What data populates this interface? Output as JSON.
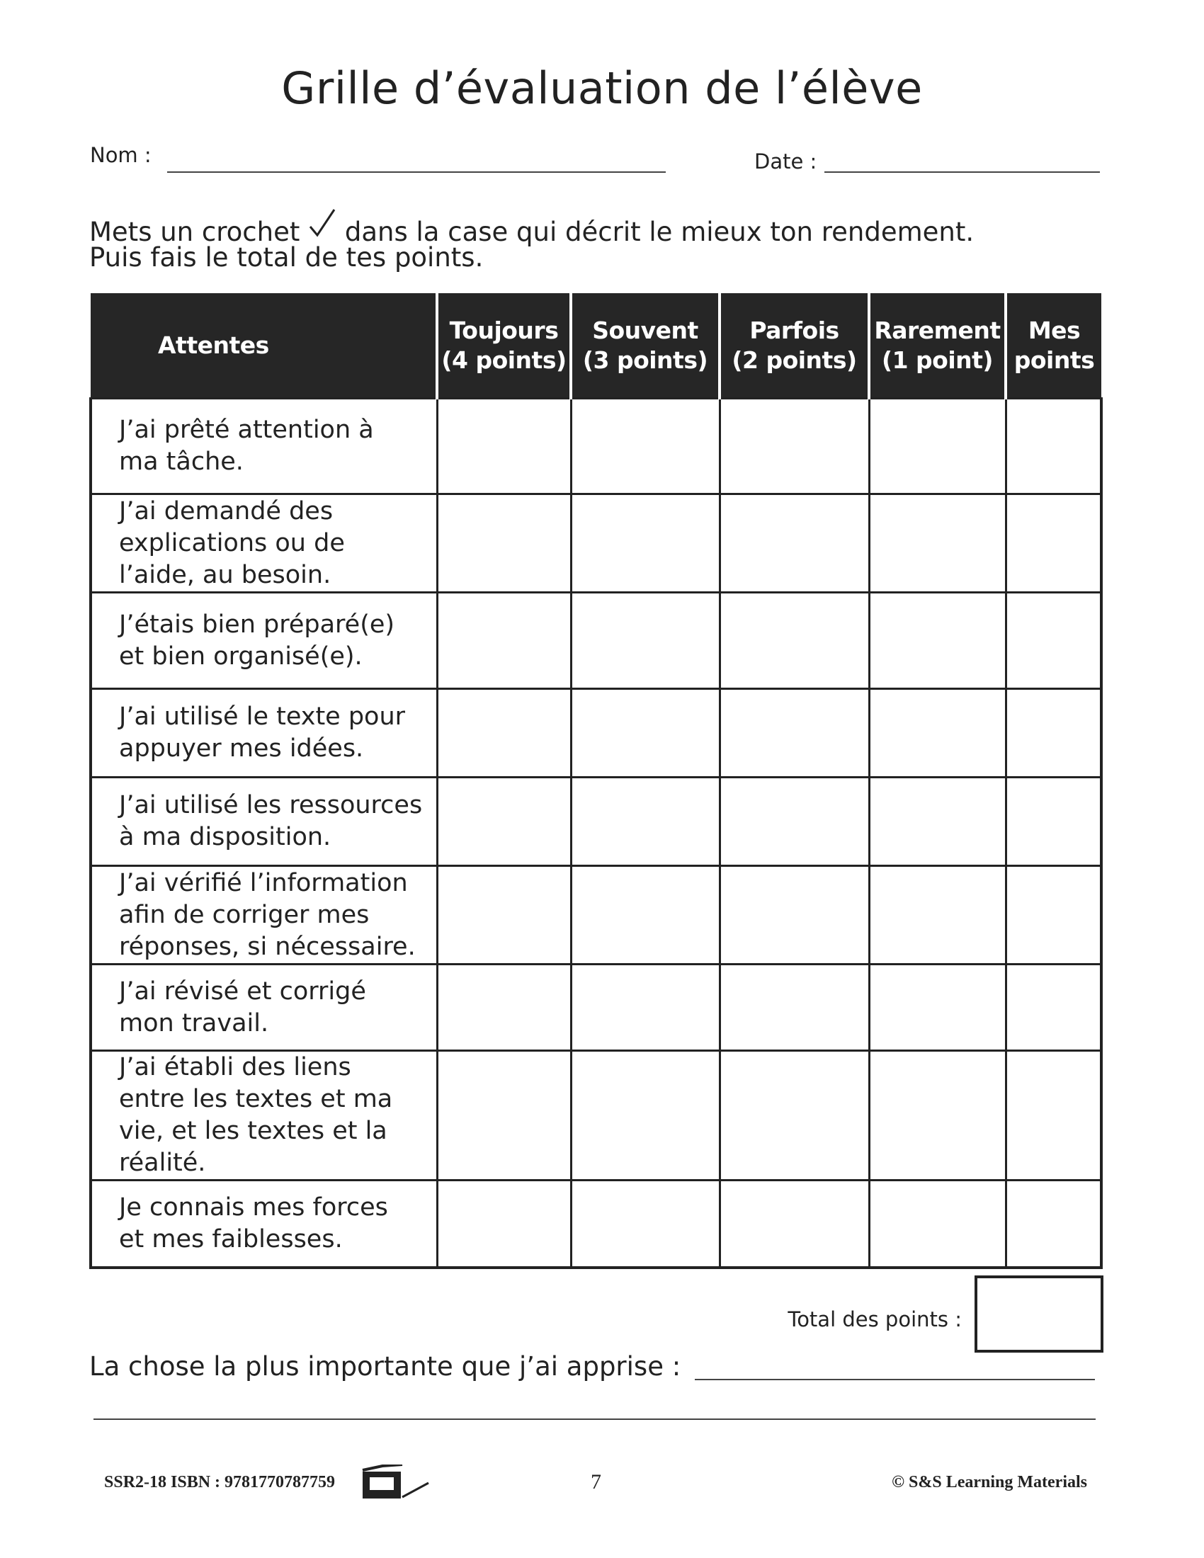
{
  "title": "Grille d’évaluation de l’élève",
  "fields": {
    "name_label": "Nom :",
    "date_label": "Date :"
  },
  "instructions": {
    "line1_before": "Mets un crochet",
    "check_icon": "checkmark-icon",
    "line1_after": "dans la case qui décrit le mieux ton rendement.",
    "line2": "Puis fais le total de tes points."
  },
  "table": {
    "headers": [
      [
        "Attentes"
      ],
      [
        "Toujours",
        "(4 points)"
      ],
      [
        "Souvent",
        "(3 points)"
      ],
      [
        "Parfois",
        "(2 points)"
      ],
      [
        "Rarement",
        "(1 point)"
      ],
      [
        "Mes",
        "points"
      ]
    ],
    "rows": [
      [
        "J’ai prêté attention à",
        "ma tâche."
      ],
      [
        "J’ai demandé des",
        "explications ou de",
        "l’aide, au besoin."
      ],
      [
        "J’étais bien préparé(e)",
        "et bien organisé(e)."
      ],
      [
        "J’ai utilisé le texte pour",
        "appuyer mes idées."
      ],
      [
        "J’ai utilisé les ressources",
        "à ma disposition."
      ],
      [
        "J’ai vérifié l’information",
        "afin de corriger mes",
        "réponses, si nécessaire."
      ],
      [
        "J’ai révisé et corrigé",
        "mon travail."
      ],
      [
        "J’ai établi des liens",
        "entre les textes et ma",
        "vie, et les textes et la",
        "réalité."
      ],
      [
        "Je connais mes forces",
        "et mes faiblesses."
      ]
    ]
  },
  "total_label": "Total des points :",
  "learned_label": "La chose la plus importante que j’ai apprise :",
  "footer": {
    "code": "SSR2-18  ISBN : 9781770787759",
    "icon": "photocopier-icon",
    "page": "7",
    "copyright": "© S&S Learning Materials"
  }
}
